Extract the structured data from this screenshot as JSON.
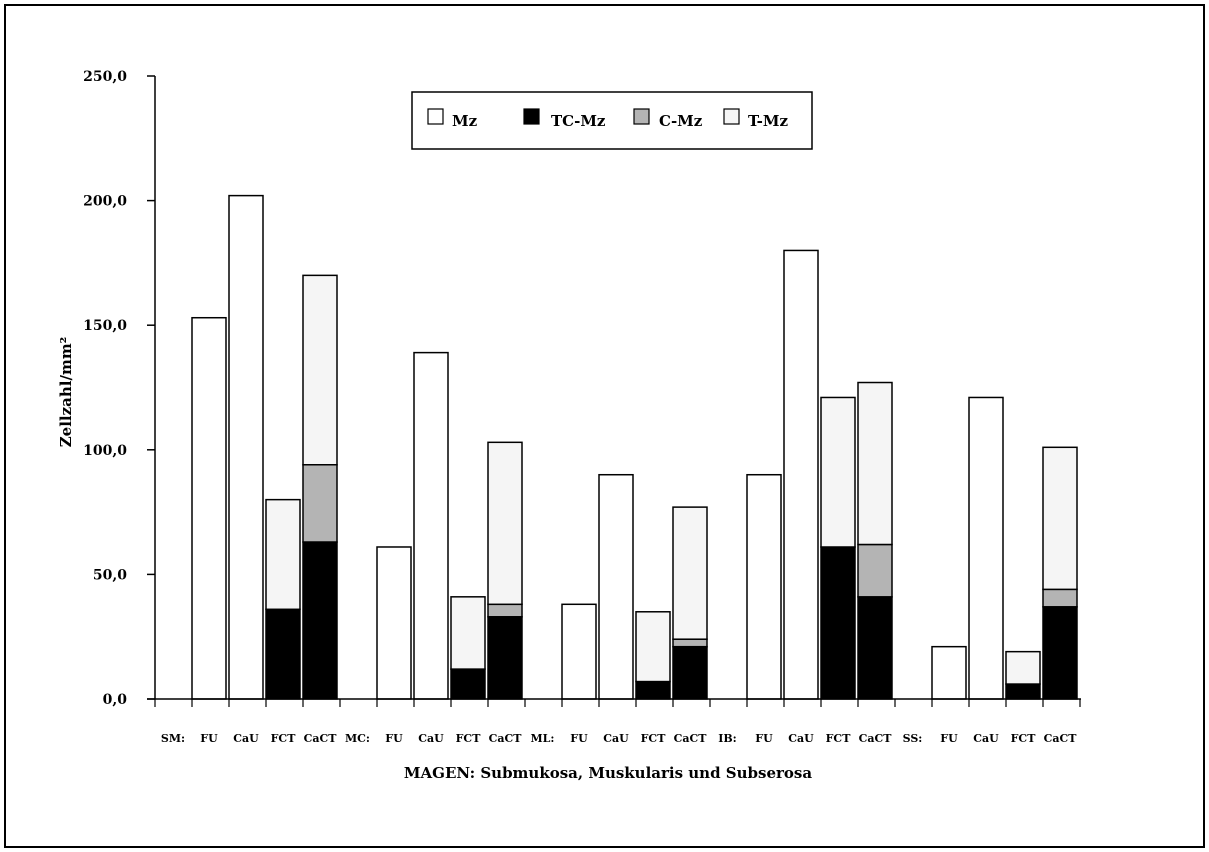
{
  "chart_data": {
    "type": "bar",
    "stacked": true,
    "title": "",
    "xlabel": "MAGEN: Submukosa, Muskularis und Subserosa",
    "ylabel": "Zellzahl/mm²",
    "ylim": [
      0,
      250
    ],
    "yticks": [
      "0,0",
      "50,0",
      "100,0",
      "150,0",
      "200,0",
      "250,0"
    ],
    "grid": false,
    "legend_position": "top-center",
    "group_labels": [
      "SM:",
      "MC:",
      "ML:",
      "IB:",
      "SS:"
    ],
    "categories": [
      "FU",
      "CaU",
      "FCT",
      "CaCT",
      "FU",
      "CaU",
      "FCT",
      "CaCT",
      "FU",
      "CaU",
      "FCT",
      "CaCT",
      "FU",
      "CaU",
      "FCT",
      "CaCT",
      "FU",
      "CaU",
      "FCT",
      "CaCT"
    ],
    "series": [
      {
        "name": "Mz",
        "color": "#ffffff",
        "values": [
          153,
          202,
          0,
          0,
          61,
          139,
          0,
          0,
          38,
          90,
          0,
          0,
          90,
          180,
          0,
          0,
          21,
          121,
          0,
          0
        ]
      },
      {
        "name": "TC-Mz",
        "color": "#000000",
        "values": [
          0,
          0,
          36,
          63,
          0,
          0,
          12,
          33,
          0,
          0,
          7,
          21,
          0,
          0,
          61,
          41,
          0,
          0,
          6,
          37
        ]
      },
      {
        "name": "C-Mz",
        "color": "#b4b4b4",
        "values": [
          0,
          0,
          0,
          31,
          0,
          0,
          0,
          5,
          0,
          0,
          0,
          3,
          0,
          0,
          0,
          21,
          0,
          0,
          0,
          7
        ]
      },
      {
        "name": "T-Mz",
        "color": "#f5f5f5",
        "values": [
          0,
          0,
          44,
          76,
          0,
          0,
          29,
          65,
          0,
          0,
          28,
          53,
          0,
          0,
          60,
          65,
          0,
          0,
          13,
          57
        ]
      }
    ]
  }
}
